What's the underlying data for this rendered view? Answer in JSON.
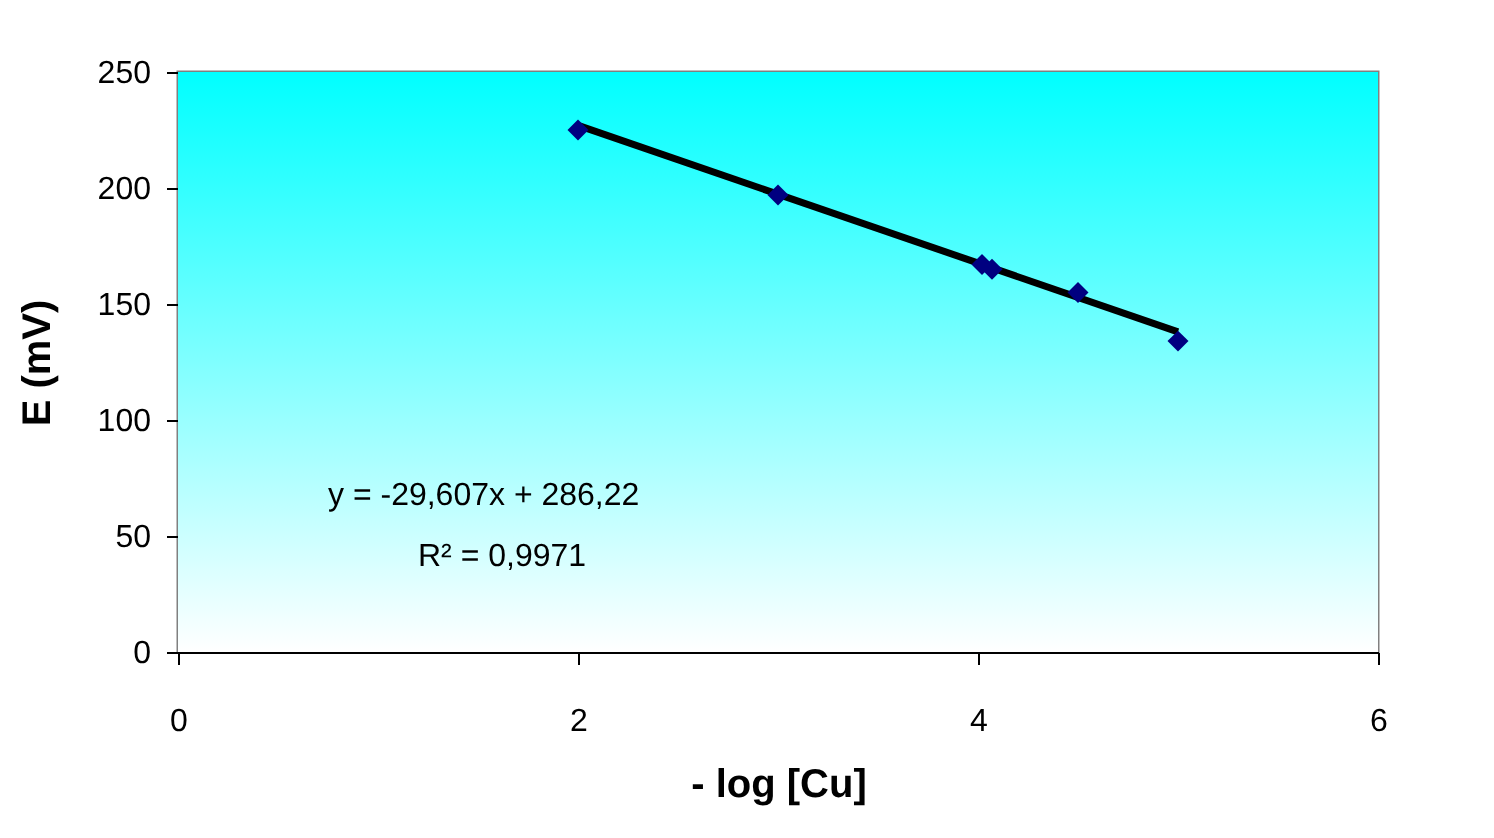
{
  "chart_data": {
    "type": "scatter",
    "xlabel": "- log [Cu]",
    "ylabel": "E (mV)",
    "xlim": [
      0,
      6
    ],
    "xticks": [
      0,
      2,
      4,
      6
    ],
    "ylim": [
      0,
      250
    ],
    "yticks": [
      0,
      50,
      100,
      150,
      200,
      250
    ],
    "marker": "diamond",
    "series": [
      {
        "type": "line",
        "color": "#000000",
        "x": [
          2,
          5
        ],
        "values": [
          227,
          138
        ],
        "line_style": "solid",
        "marker": "none"
      },
      {
        "color": "#000080",
        "x": [
          2,
          3,
          4.02,
          4.07,
          4.5,
          5
        ],
        "values": [
          225,
          197,
          167,
          165,
          155,
          134
        ]
      }
    ],
    "annotations": [
      "y = -29,607x + 286,22",
      "R² = 0,9971"
    ]
  }
}
